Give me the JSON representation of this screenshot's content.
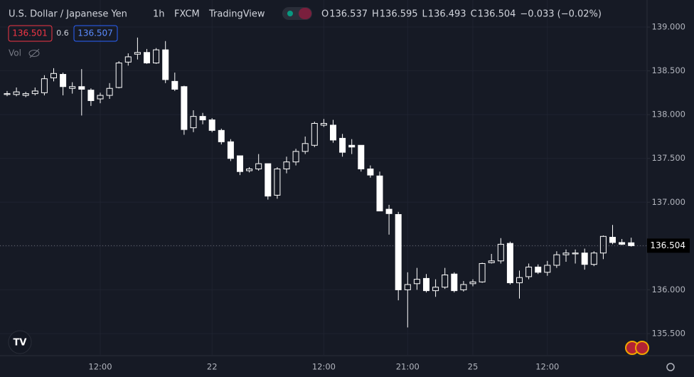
{
  "chart_data": {
    "type": "candlestick",
    "title": "U.S. Dollar / Japanese Yen",
    "interval": "1h",
    "source": "FXCM",
    "platform": "TradingView",
    "header_ohlc": [
      {
        "label": "O",
        "value": "136.537"
      },
      {
        "label": "H",
        "value": "136.595"
      },
      {
        "label": "L",
        "value": "136.493"
      },
      {
        "label": "C",
        "value": "136.504"
      }
    ],
    "change": "−0.033 (−0.02%)",
    "bid": "136.501",
    "spread": "0.6",
    "ask": "136.507",
    "volume_label": "Vol",
    "last_price": {
      "value": 136.504,
      "label": "136.504"
    },
    "ylim": [
      135.248,
      139.309
    ],
    "yticks": [
      {
        "value": 135.5,
        "label": "135.500"
      },
      {
        "value": 136,
        "label": "136.000"
      },
      {
        "value": 136.5,
        "label": "136.500"
      },
      {
        "value": 137,
        "label": "137.000"
      },
      {
        "value": 137.5,
        "label": "137.500"
      },
      {
        "value": 138,
        "label": "138.000"
      },
      {
        "value": 138.5,
        "label": "138.500"
      },
      {
        "value": 139,
        "label": "139.000"
      }
    ],
    "grid": true,
    "color": "#ffffff",
    "background": "#161a25",
    "categories": [
      null,
      null,
      null,
      null,
      null,
      null,
      null,
      null,
      null,
      null,
      "12:00",
      null,
      null,
      null,
      null,
      null,
      null,
      null,
      null,
      null,
      null,
      null,
      "22",
      null,
      null,
      null,
      null,
      null,
      null,
      null,
      null,
      null,
      null,
      null,
      "12:00",
      null,
      null,
      null,
      null,
      null,
      null,
      null,
      null,
      "21:00",
      null,
      null,
      null,
      null,
      null,
      null,
      "25",
      null,
      null,
      null,
      null,
      null,
      null,
      null,
      "12:00",
      null,
      null,
      null,
      null,
      null,
      null,
      null,
      null,
      null
    ],
    "open": [
      138.23,
      138.23,
      138.22,
      138.24,
      138.25,
      138.42,
      138.46,
      138.3,
      138.32,
      138.28,
      138.18,
      138.22,
      138.31,
      138.6,
      138.69,
      138.71,
      138.59,
      138.74,
      138.38,
      138.32,
      137.85,
      137.98,
      137.94,
      137.82,
      137.69,
      137.53,
      137.36,
      137.38,
      137.44,
      137.08,
      137.38,
      137.46,
      137.58,
      137.65,
      137.88,
      137.88,
      137.73,
      137.65,
      137.65,
      137.38,
      137.3,
      136.92,
      136.86,
      136.0,
      136.07,
      136.13,
      135.99,
      136.03,
      136.18,
      136.0,
      136.07,
      136.09,
      136.31,
      136.33,
      136.53,
      136.08,
      136.15,
      136.26,
      136.2,
      136.28,
      136.4,
      136.41,
      136.42,
      136.29,
      136.42,
      136.6,
      136.54,
      136.537
    ],
    "high": [
      138.27,
      138.31,
      138.26,
      138.31,
      138.45,
      138.53,
      138.48,
      138.37,
      138.52,
      138.3,
      138.25,
      138.36,
      138.61,
      138.7,
      138.88,
      138.75,
      138.76,
      138.84,
      138.48,
      138.33,
      138.05,
      138.02,
      137.96,
      137.84,
      137.72,
      137.53,
      137.4,
      137.55,
      137.44,
      137.4,
      137.52,
      137.61,
      137.75,
      137.92,
      137.95,
      137.94,
      137.78,
      137.72,
      137.65,
      137.42,
      137.35,
      136.97,
      136.89,
      136.2,
      136.25,
      136.18,
      136.12,
      136.25,
      136.2,
      136.1,
      136.12,
      136.31,
      136.41,
      136.59,
      136.55,
      136.22,
      136.3,
      136.29,
      136.33,
      136.44,
      136.46,
      136.46,
      136.47,
      136.44,
      136.62,
      136.74,
      136.58,
      136.595
    ],
    "low": [
      138.21,
      138.21,
      138.2,
      138.22,
      138.22,
      138.38,
      138.22,
      138.24,
      137.99,
      138.1,
      138.13,
      138.18,
      138.3,
      138.56,
      138.63,
      138.58,
      138.58,
      138.36,
      138.27,
      137.77,
      137.8,
      137.89,
      137.8,
      137.66,
      137.47,
      137.31,
      137.34,
      137.36,
      137.03,
      137.04,
      137.33,
      137.42,
      137.55,
      137.63,
      137.86,
      137.68,
      137.52,
      137.55,
      137.35,
      137.28,
      136.9,
      136.63,
      135.88,
      135.57,
      136.0,
      135.97,
      135.92,
      136.01,
      135.97,
      135.98,
      136.04,
      136.08,
      136.3,
      136.3,
      136.06,
      135.9,
      136.12,
      136.18,
      136.16,
      136.25,
      136.32,
      136.3,
      136.23,
      136.27,
      136.35,
      136.52,
      136.51,
      136.493
    ],
    "close": [
      138.24,
      138.26,
      138.24,
      138.27,
      138.41,
      138.47,
      138.32,
      138.32,
      138.29,
      138.16,
      138.22,
      138.3,
      138.59,
      138.66,
      138.71,
      138.59,
      138.74,
      138.4,
      138.29,
      137.83,
      137.98,
      137.94,
      137.82,
      137.69,
      137.5,
      137.35,
      137.38,
      137.44,
      137.07,
      137.38,
      137.46,
      137.58,
      137.67,
      137.9,
      137.9,
      137.71,
      137.57,
      137.63,
      137.38,
      137.31,
      136.9,
      136.87,
      136.0,
      136.06,
      136.12,
      135.99,
      136.03,
      136.17,
      135.99,
      136.06,
      136.09,
      136.3,
      136.33,
      136.52,
      136.08,
      136.14,
      136.26,
      136.2,
      136.28,
      136.4,
      136.42,
      136.42,
      136.29,
      136.42,
      136.61,
      136.54,
      136.52,
      136.504
    ]
  }
}
